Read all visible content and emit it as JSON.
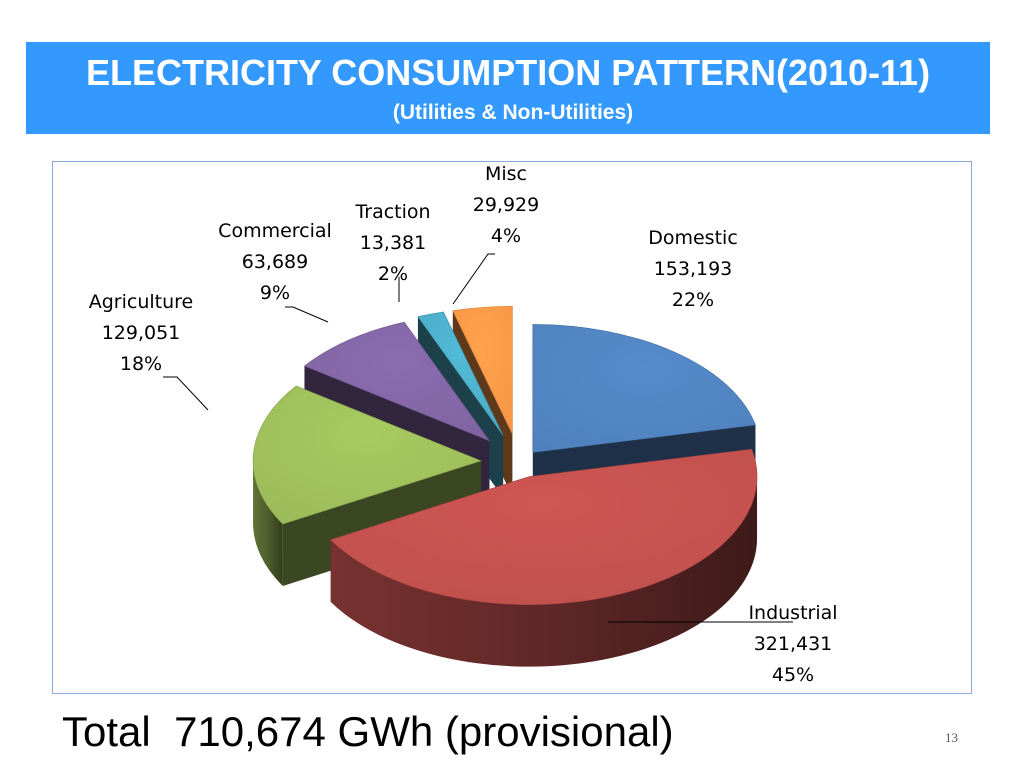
{
  "slide": {
    "title": "ELECTRICITY CONSUMPTION PATTERN(2010-11)",
    "subtitle": "(Utilities & Non-Utilities)",
    "total_label": "Total",
    "total_value": "710,674 GWh (provisional)",
    "page_number": "13"
  },
  "chart_data": {
    "type": "pie",
    "title": "ELECTRICITY CONSUMPTION PATTERN(2010-11)",
    "subtitle": "(Utilities & Non-Utilities)",
    "three_d": true,
    "exploded": true,
    "slices": [
      {
        "name": "Domestic",
        "value": 153193,
        "value_label": "153,193",
        "percent": "22%",
        "color": "#4f81bd"
      },
      {
        "name": "Industrial",
        "value": 321431,
        "value_label": "321,431",
        "percent": "45%",
        "color": "#c0504d"
      },
      {
        "name": "Agriculture",
        "value": 129051,
        "value_label": "129,051",
        "percent": "18%",
        "color": "#9bbb59"
      },
      {
        "name": "Commercial",
        "value": 63689,
        "value_label": "63,689",
        "percent": "9%",
        "color": "#8064a2"
      },
      {
        "name": "Traction",
        "value": 13381,
        "value_label": "13,381",
        "percent": "2%",
        "color": "#4bacc6"
      },
      {
        "name": "Misc",
        "value": 29929,
        "value_label": "29,929",
        "percent": "4%",
        "color": "#f79646"
      }
    ]
  }
}
